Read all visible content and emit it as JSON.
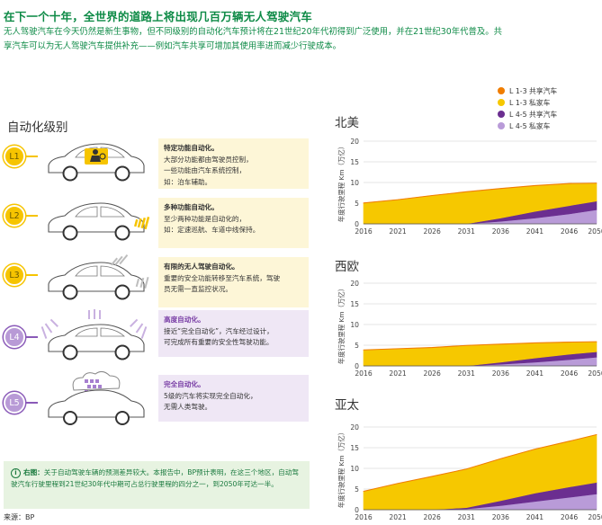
{
  "header": {
    "title": "在下一个十年，全世界的道路上将出现几百万辆无人驾驶汽车",
    "intro": "无人驾驶汽车在今天仍然是新生事物，但不同级别的自动化汽车预计将在21世纪20年代初得到广泛使用，并在21世纪30年代普及。共享汽车可以为无人驾驶汽车提供补充——例如汽车共享可增加其使用率进而减少行驶成本。"
  },
  "levels_section": {
    "title": "自动化级别",
    "levels": [
      {
        "badge": "L1",
        "heading": "特定功能自动化。",
        "lines": [
          "大部分功能都由驾驶员控制，",
          "一些功能由汽车系统控制，",
          "如：泊车辅助。"
        ]
      },
      {
        "badge": "L2",
        "heading": "多种功能自动化。",
        "lines": [
          "至少两种功能是自动化的，",
          "如：定速巡航、车道中线保持。"
        ]
      },
      {
        "badge": "L3",
        "heading": "有限的无人驾驶自动化。",
        "lines": [
          "重要的安全功能转移至汽车系统，驾驶",
          "员无需一直监控状况。"
        ]
      },
      {
        "badge": "L4",
        "heading": "高度自动化。",
        "lines": [
          "接近“完全自动化”，汽车经过设计，",
          "可完成所有重要的安全性驾驶功能。"
        ]
      },
      {
        "badge": "L5",
        "heading": "完全自动化。",
        "lines": [
          "5级的汽车将实现完全自动化，",
          "无需人类驾驶。"
        ]
      }
    ]
  },
  "note": {
    "label": "右图：",
    "text": "关于自动驾驶车辆的预测差异较大。本报告中，BP预计表明，在这三个地区，自动驾驶汽车行驶里程到21世纪30年代中期可占总行驶里程的四分之一，到2050年可达一半。"
  },
  "source": "来源：BP",
  "legend": [
    {
      "label": "L 1-3 共享汽车",
      "color": "#f07d00"
    },
    {
      "label": "L 1-3 私家车",
      "color": "#f6c800"
    },
    {
      "label": "L 4-5 共享汽车",
      "color": "#6b2e90"
    },
    {
      "label": "L 4-5 私家车",
      "color": "#b99bd8"
    }
  ],
  "chart_data": [
    {
      "type": "area",
      "stacked": true,
      "title": "北美",
      "ylabel": "年度行驶里程 Km（万亿）",
      "x": [
        2016,
        2021,
        2026,
        2031,
        2036,
        2041,
        2046,
        2050
      ],
      "ylim": [
        0,
        20
      ],
      "yticks": [
        0,
        5,
        10,
        15,
        20
      ],
      "series": [
        {
          "name": "L 4-5 私家车",
          "color": "#b99bd8",
          "values": [
            0,
            0,
            0,
            0,
            0.6,
            1.4,
            2.4,
            3.4
          ]
        },
        {
          "name": "L 4-5 共享汽车",
          "color": "#6b2e90",
          "values": [
            0,
            0,
            0,
            0,
            0.8,
            1.6,
            2.0,
            2.1
          ]
        },
        {
          "name": "L 1-3 私家车",
          "color": "#f6c800",
          "values": [
            5.0,
            5.8,
            6.8,
            7.7,
            7.1,
            6.2,
            5.3,
            4.3
          ]
        },
        {
          "name": "L 1-3 共享汽车",
          "color": "#f07d00",
          "values": [
            0.1,
            0.1,
            0.1,
            0.1,
            0.1,
            0.1,
            0.1,
            0.1
          ]
        }
      ]
    },
    {
      "type": "area",
      "stacked": true,
      "title": "西欧",
      "ylabel": "年度行驶里程 Km（万亿）",
      "x": [
        2016,
        2021,
        2026,
        2031,
        2036,
        2041,
        2046,
        2050
      ],
      "ylim": [
        0,
        20
      ],
      "yticks": [
        0,
        5,
        10,
        15,
        20
      ],
      "series": [
        {
          "name": "L 4-5 私家车",
          "color": "#b99bd8",
          "values": [
            0,
            0,
            0,
            0,
            0.4,
            0.9,
            1.5,
            2.1
          ]
        },
        {
          "name": "L 4-5 共享汽车",
          "color": "#6b2e90",
          "values": [
            0,
            0,
            0,
            0,
            0.5,
            1.0,
            1.3,
            1.3
          ]
        },
        {
          "name": "L 1-3 私家车",
          "color": "#f6c800",
          "values": [
            3.8,
            4.1,
            4.4,
            4.9,
            4.3,
            3.6,
            2.9,
            2.4
          ]
        },
        {
          "name": "L 1-3 共享汽车",
          "color": "#f07d00",
          "values": [
            0.1,
            0.1,
            0.1,
            0.1,
            0.1,
            0.1,
            0.1,
            0.1
          ]
        }
      ]
    },
    {
      "type": "area",
      "stacked": true,
      "title": "亚太",
      "ylabel": "年度行驶里程 Km（万亿）",
      "x": [
        2016,
        2021,
        2026,
        2031,
        2036,
        2041,
        2046,
        2050
      ],
      "ylim": [
        0,
        20
      ],
      "yticks": [
        0,
        5,
        10,
        15,
        20
      ],
      "series": [
        {
          "name": "L 4-5 私家车",
          "color": "#b99bd8",
          "values": [
            0,
            0,
            0,
            0.2,
            1.0,
            2.0,
            3.0,
            3.8
          ]
        },
        {
          "name": "L 4-5 共享汽车",
          "color": "#6b2e90",
          "values": [
            0,
            0,
            0,
            0.3,
            1.2,
            2.0,
            2.5,
            2.8
          ]
        },
        {
          "name": "L 1-3 私家车",
          "color": "#f6c800",
          "values": [
            4.4,
            6.3,
            8.0,
            9.3,
            10.1,
            10.6,
            11.0,
            11.5
          ]
        },
        {
          "name": "L 1-3 共享汽车",
          "color": "#f07d00",
          "values": [
            0.1,
            0.1,
            0.1,
            0.1,
            0.1,
            0.1,
            0.1,
            0.1
          ]
        }
      ]
    }
  ]
}
